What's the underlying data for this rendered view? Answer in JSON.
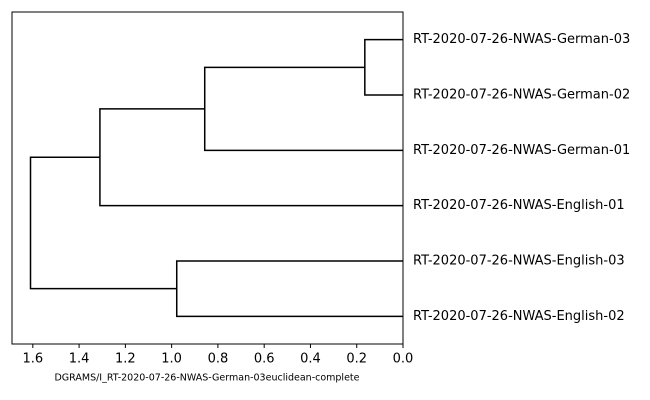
{
  "chart_data": {
    "type": "dendrogram",
    "orientation": "left",
    "xlabel": "DGRAMS/I_RT-2020-07-26-NWAS-German-03euclidean-complete",
    "xlim": [
      1.69,
      0
    ],
    "xticks": [
      1.6,
      1.4,
      1.2,
      {
        "value": 1.0,
        "label": "1.0"
      },
      0.8,
      0.6,
      0.4,
      0.2,
      {
        "value": 0,
        "label": "0.0"
      }
    ],
    "color": "#000000",
    "tree": {
      "height": 1.61,
      "children": [
        {
          "height": 1.31,
          "children": [
            {
              "height": 0.857,
              "children": [
                {
                  "height": 0.165,
                  "children": [
                    {
                      "label": "RT-2020-07-26-NWAS-German-03"
                    },
                    {
                      "label": "RT-2020-07-26-NWAS-German-02"
                    }
                  ]
                },
                {
                  "label": "RT-2020-07-26-NWAS-German-01"
                }
              ]
            },
            {
              "label": "RT-2020-07-26-NWAS-English-01"
            }
          ]
        },
        {
          "height": 0.978,
          "children": [
            {
              "label": "RT-2020-07-26-NWAS-English-03"
            },
            {
              "label": "RT-2020-07-26-NWAS-English-02"
            }
          ]
        }
      ]
    }
  }
}
